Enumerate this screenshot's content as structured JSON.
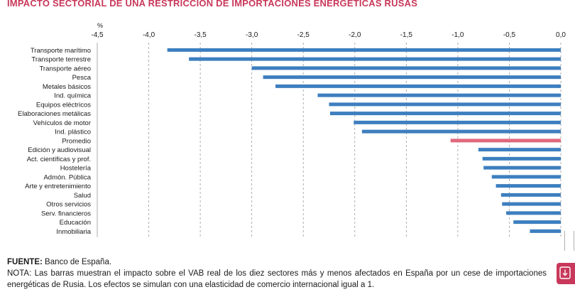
{
  "title": "IMPACTO SECTORIAL DE UNA RESTRICCIÓN DE IMPORTACIONES ENERGÉTICAS RUSAS",
  "footer": {
    "source_label": "FUENTE:",
    "source_text": "Banco de España.",
    "note": "NOTA: Las barras muestran el impacto sobre el VAB real de los diez sectores más y menos afectados en España por un cese de importaciones energéticas de Rusia. Los efectos se simulan con una elasticidad de comercio internacional igual a 1."
  },
  "download_button": {
    "icon": "download-icon"
  },
  "chart_data": {
    "type": "bar",
    "orientation": "horizontal",
    "unit": "%",
    "xlim": [
      -4.5,
      0.0
    ],
    "x_ticks": [
      -4.5,
      -4.0,
      -3.5,
      -3.0,
      -2.5,
      -2.0,
      -1.5,
      -1.0,
      -0.5,
      0.0
    ],
    "x_tick_labels": [
      "-4,5",
      "-4,0",
      "-3,5",
      "-3,0",
      "-2,5",
      "-2,0",
      "-1,5",
      "-1,0",
      "-0,5",
      "0,0"
    ],
    "axis_position": "top",
    "grid": "vertical dashed",
    "bar_color": "#3d7fbf",
    "highlight_color": "#e0697c",
    "categories": [
      "Transporte marítimo",
      "Transporte terrestre",
      "Transporte aéreo",
      "Pesca",
      "Metales básicos",
      "Ind. química",
      "Equipos eléctricos",
      "Elaboraciones metálicas",
      "Vehículos de motor",
      "Ind. plástico",
      "Promedio",
      "Edición y audiovisual",
      "Act. científicas y prof.",
      "Hostelería",
      "Admón. Pública",
      "Arte y entretenimiento",
      "Salud",
      "Otros servicios",
      "Serv. financieros",
      "Educación",
      "Inmobiliaria"
    ],
    "values": [
      -3.82,
      -3.61,
      -3.0,
      -2.89,
      -2.77,
      -2.36,
      -2.25,
      -2.24,
      -2.01,
      -1.93,
      -1.07,
      -0.8,
      -0.76,
      -0.75,
      -0.67,
      -0.63,
      -0.58,
      -0.57,
      -0.53,
      -0.46,
      -0.3
    ],
    "highlight_category": "Promedio"
  }
}
